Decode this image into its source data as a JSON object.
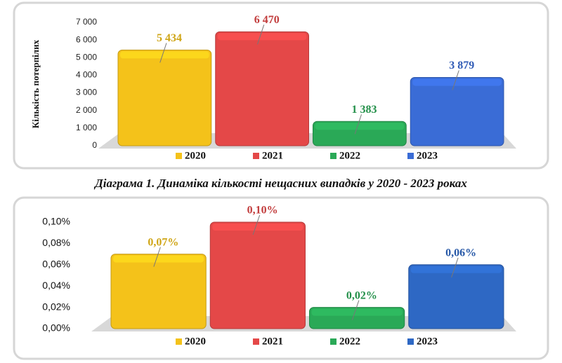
{
  "chart_data": [
    {
      "type": "bar",
      "y_label": "Кількість потерпілих",
      "caption": "Діаграма 1. Динаміка кількості нещасних випадків у 2020 - 2023 роках",
      "series": [
        {
          "name": "2020",
          "color": "#f4c21a",
          "values": [
            5434
          ],
          "value_labels": [
            "5 434"
          ]
        },
        {
          "name": "2021",
          "color": "#e44848",
          "values": [
            6470
          ],
          "value_labels": [
            "6 470"
          ]
        },
        {
          "name": "2022",
          "color": "#2aa957",
          "values": [
            1383
          ],
          "value_labels": [
            "1 383"
          ]
        },
        {
          "name": "2023",
          "color": "#3a6cd6",
          "values": [
            3879
          ],
          "value_labels": [
            "3 879"
          ]
        }
      ],
      "ylim": [
        0,
        7000
      ],
      "yticks": [
        0,
        {
          "value": 1000,
          "label": "1 000"
        },
        {
          "value": 2000,
          "label": "2 000"
        },
        {
          "value": 3000,
          "label": "3 000"
        },
        {
          "value": 4000,
          "label": "4 000"
        },
        {
          "value": 5000,
          "label": "5 000"
        },
        {
          "value": 6000,
          "label": "6 000"
        },
        {
          "value": 7000,
          "label": "7 000"
        }
      ]
    },
    {
      "type": "bar",
      "series": [
        {
          "name": "2020",
          "color": "#f4c21a",
          "values": [
            0.07
          ],
          "value_labels": [
            "0,07%"
          ]
        },
        {
          "name": "2021",
          "color": "#e44848",
          "values": [
            0.1
          ],
          "value_labels": [
            "0,10%"
          ]
        },
        {
          "name": "2022",
          "color": "#2aa957",
          "values": [
            0.02
          ],
          "value_labels": [
            "0,02%"
          ]
        },
        {
          "name": "2023",
          "color": "#2e68c4",
          "values": [
            0.06
          ],
          "value_labels": [
            "0,06%"
          ]
        }
      ],
      "ylim": [
        0,
        0.1
      ],
      "yticks": [
        {
          "value": 0,
          "label": "0,00%"
        },
        {
          "value": 0.02,
          "label": "0,02%"
        },
        {
          "value": 0.04,
          "label": "0,04%"
        },
        {
          "value": 0.06,
          "label": "0,06%"
        },
        {
          "value": 0.08,
          "label": "0,08%"
        },
        {
          "value": 0.1,
          "label": "0,10%"
        }
      ]
    }
  ]
}
